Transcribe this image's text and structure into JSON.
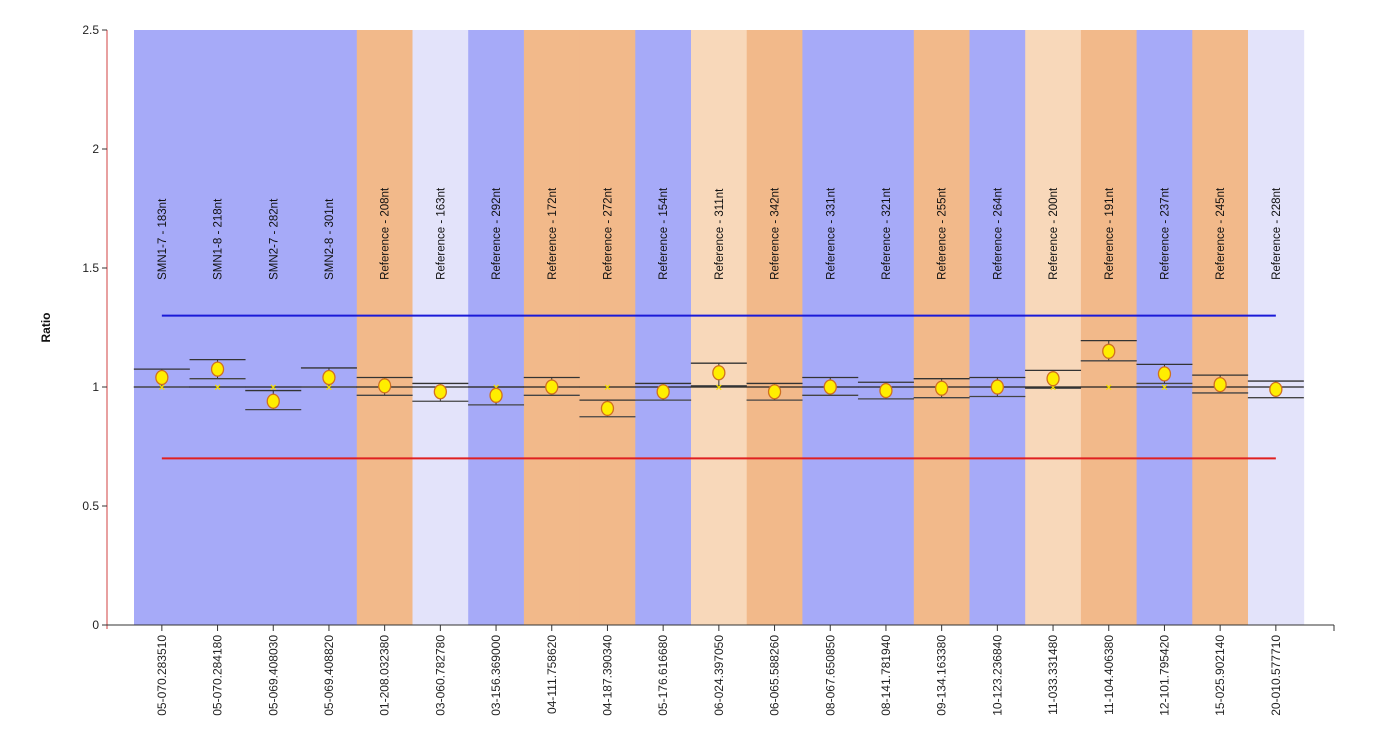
{
  "chart_data": {
    "type": "scatter",
    "ylabel": "Ratio",
    "xlabel": "",
    "ylim": [
      0,
      2.5
    ],
    "yticks": [
      "0",
      "0.5",
      "1",
      "1.5",
      "2",
      "2.5"
    ],
    "grid": false,
    "thresholds": [
      {
        "value": 1.3,
        "color": "#1a1ad8"
      },
      {
        "value": 0.7,
        "color": "#e02020"
      }
    ],
    "expected_value": 1.0,
    "categories": [
      "05-070.283510",
      "05-070.284180",
      "05-069.408030",
      "05-069.408820",
      "01-208.032380",
      "03-060.782780",
      "03-156.369000",
      "04-111.758620",
      "04-187.390340",
      "05-176.616680",
      "06-024.397050",
      "06-065.588260",
      "08-067.650850",
      "08-141.781940",
      "09-134.163380",
      "10-123.236840",
      "11-033.331480",
      "11-104.406380",
      "12-101.795420",
      "15-025.902140",
      "20-010.577710"
    ],
    "probe_labels": [
      "SMN1-7 - 183nt",
      "SMN1-8 - 218nt",
      "SMN2-7 - 282nt",
      "SMN2-8 - 301nt",
      "Reference - 208nt",
      "Reference - 163nt",
      "Reference - 292nt",
      "Reference - 172nt",
      "Reference - 272nt",
      "Reference - 154nt",
      "Reference - 311nt",
      "Reference - 342nt",
      "Reference - 331nt",
      "Reference - 321nt",
      "Reference - 255nt",
      "Reference - 264nt",
      "Reference - 200nt",
      "Reference - 191nt",
      "Reference - 237nt",
      "Reference - 245nt",
      "Reference - 228nt"
    ],
    "band_colors": [
      "#a6aaf8",
      "#a6aaf8",
      "#a6aaf8",
      "#a6aaf8",
      "#f2b98a",
      "#e3e3fa",
      "#a6aaf8",
      "#f2b98a",
      "#f2b98a",
      "#a6aaf8",
      "#f8d8ba",
      "#f2b98a",
      "#a6aaf8",
      "#a6aaf8",
      "#f2b98a",
      "#a6aaf8",
      "#f8d8ba",
      "#f2b98a",
      "#a6aaf8",
      "#f2b98a",
      "#e3e3fa"
    ],
    "values": [
      1.04,
      1.075,
      0.94,
      1.04,
      1.005,
      0.98,
      0.965,
      1.0,
      0.91,
      0.98,
      1.06,
      0.98,
      1.0,
      0.985,
      0.995,
      1.0,
      1.035,
      1.15,
      1.055,
      1.01,
      0.99
    ],
    "upper": [
      1.075,
      1.115,
      0.985,
      1.08,
      1.04,
      1.015,
      1.0,
      1.04,
      0.945,
      1.015,
      1.1,
      1.015,
      1.04,
      1.02,
      1.035,
      1.04,
      1.07,
      1.195,
      1.095,
      1.05,
      1.025
    ],
    "lower": [
      1.0,
      1.035,
      0.905,
      1.0,
      0.965,
      0.94,
      0.925,
      0.965,
      0.875,
      0.945,
      1.005,
      0.945,
      0.965,
      0.95,
      0.955,
      0.96,
      0.995,
      1.11,
      1.015,
      0.975,
      0.955
    ]
  }
}
